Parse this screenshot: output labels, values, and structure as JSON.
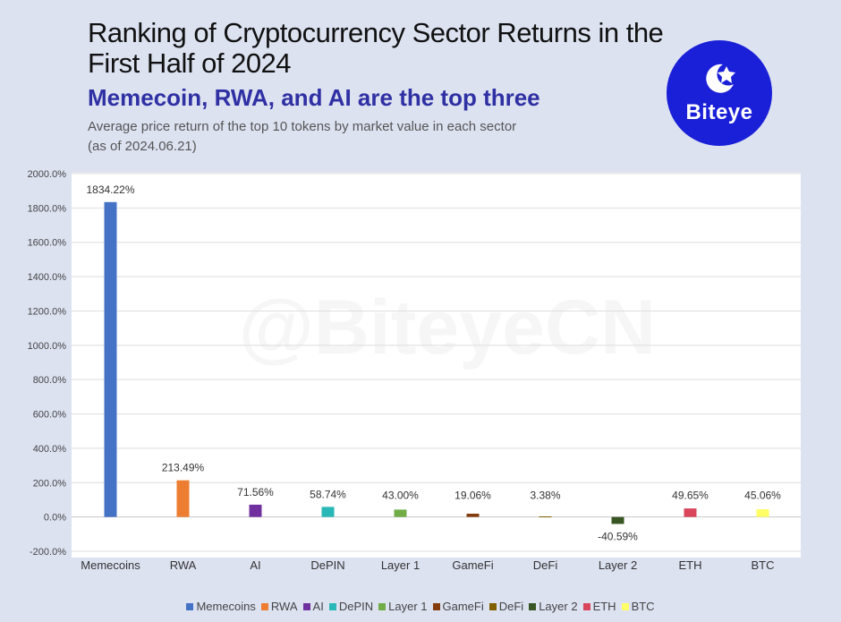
{
  "header": {
    "title": "Ranking of Cryptocurrency Sector Returns in the First Half of 2024",
    "subtitle": "Memecoin, RWA, and AI are the top three",
    "note_line1": "Average price return of the top 10 tokens by market value in each sector",
    "note_line2": "(as of 2024.06.21)"
  },
  "logo": {
    "brand": "Biteye",
    "icon": "biteye-logo-icon"
  },
  "watermark": "@BiteyeCN",
  "chart_data": {
    "type": "bar",
    "categories": [
      "Memecoins",
      "RWA",
      "AI",
      "DePIN",
      "Layer 1",
      "GameFi",
      "DeFi",
      "Layer 2",
      "ETH",
      "BTC"
    ],
    "values": [
      1834.22,
      213.49,
      71.56,
      58.74,
      43.0,
      19.06,
      3.38,
      -40.59,
      49.65,
      45.06
    ],
    "data_labels": [
      "1834.22%",
      "213.49%",
      "71.56%",
      "58.74%",
      "43.00%",
      "19.06%",
      "3.38%",
      "-40.59%",
      "49.65%",
      "45.06%"
    ],
    "colors": [
      "#4472c4",
      "#ed7d31",
      "#7030a0",
      "#2ab7b7",
      "#70ad47",
      "#843c0c",
      "#806000",
      "#375623",
      "#d9465b",
      "#ffff66"
    ],
    "ylim": [
      -200,
      2000
    ],
    "yticks": [
      -200,
      0,
      200,
      400,
      600,
      800,
      1000,
      1200,
      1400,
      1600,
      1800,
      2000
    ],
    "ytick_labels": [
      "-200.0%",
      "0.0%",
      "200.0%",
      "400.0%",
      "600.0%",
      "800.0%",
      "1000.0%",
      "1200.0%",
      "1400.0%",
      "1600.0%",
      "1800.0%",
      "2000.0%"
    ],
    "grid": true,
    "legend_position": "bottom"
  }
}
